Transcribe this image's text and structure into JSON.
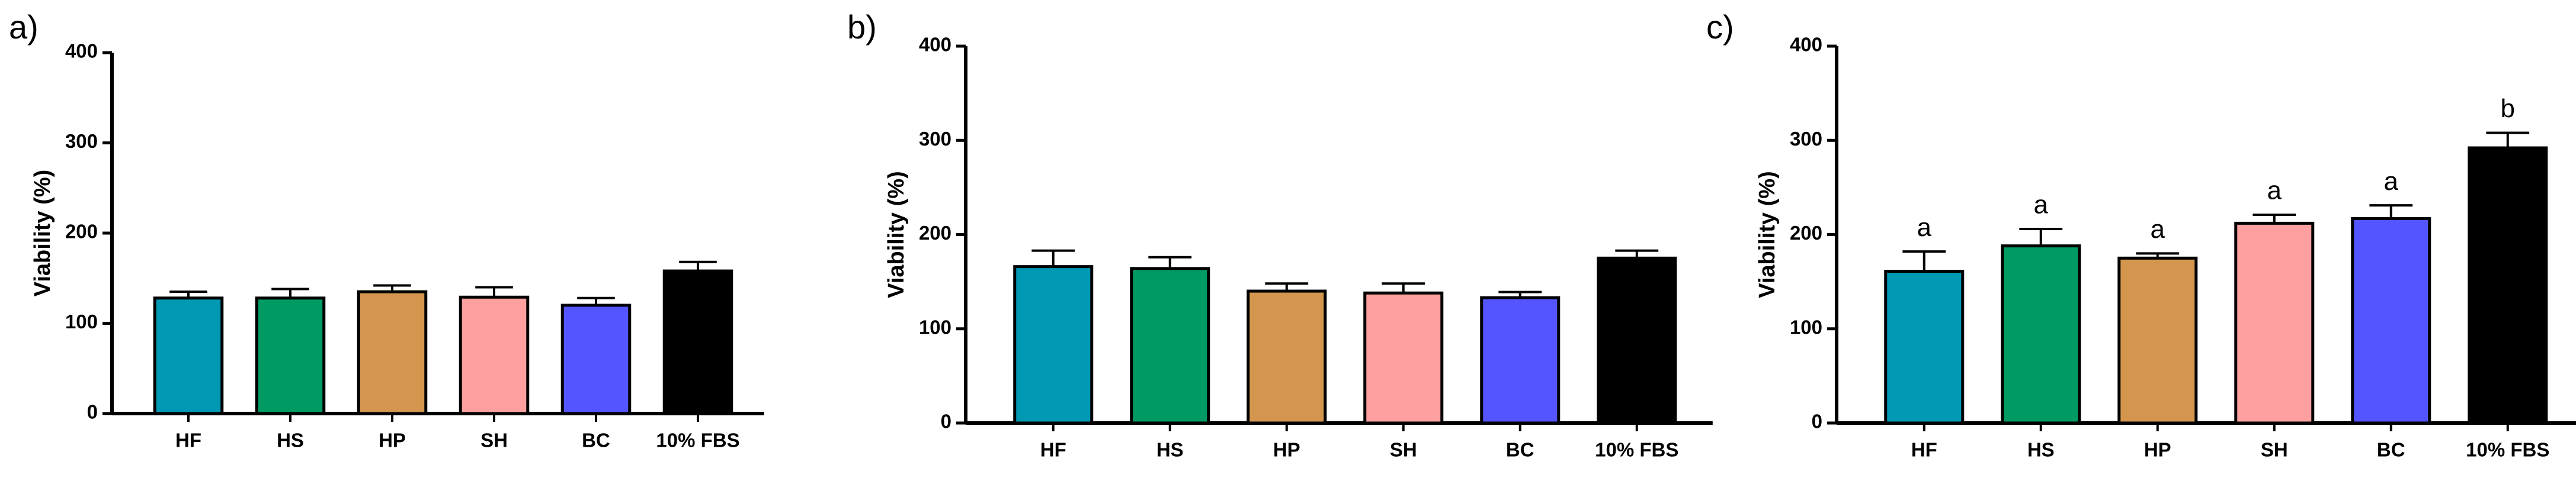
{
  "chart_data": [
    {
      "type": "bar",
      "panel": "a)",
      "ylabel": "Viability (%)",
      "categories": [
        "HF",
        "HS",
        "HP",
        "SH",
        "BC",
        "10% FBS"
      ],
      "values": [
        128,
        128,
        135,
        129,
        120,
        158
      ],
      "errors": [
        7,
        10,
        7,
        11,
        8,
        10
      ],
      "colors": [
        "#0099b4",
        "#009a63",
        "#d4964f",
        "#ffa0a0",
        "#5555ff",
        "#000000"
      ],
      "ylim": [
        0,
        400
      ],
      "yticks": [
        0,
        100,
        200,
        300,
        400
      ]
    },
    {
      "type": "bar",
      "panel": "b)",
      "ylabel": "Viability (%)",
      "categories": [
        "HF",
        "HS",
        "HP",
        "SH",
        "BC",
        "10% FBS"
      ],
      "values": [
        166,
        164,
        140,
        138,
        133,
        175
      ],
      "errors": [
        17,
        12,
        8,
        10,
        6,
        8
      ],
      "colors": [
        "#0099b4",
        "#009a63",
        "#d4964f",
        "#ffa0a0",
        "#5555ff",
        "#000000"
      ],
      "ylim": [
        0,
        400
      ],
      "yticks": [
        0,
        100,
        200,
        300,
        400
      ]
    },
    {
      "type": "bar",
      "panel": "c)",
      "ylabel": "Viability (%)",
      "categories": [
        "HF",
        "HS",
        "HP",
        "SH",
        "BC",
        "10% FBS"
      ],
      "values": [
        161,
        188,
        175,
        212,
        217,
        292
      ],
      "errors": [
        21,
        18,
        5,
        9,
        14,
        16
      ],
      "annotations": [
        "a",
        "a",
        "a",
        "a",
        "a",
        "b"
      ],
      "colors": [
        "#0099b4",
        "#009a63",
        "#d4964f",
        "#ffa0a0",
        "#5555ff",
        "#000000"
      ],
      "ylim": [
        0,
        400
      ],
      "yticks": [
        0,
        100,
        200,
        300,
        400
      ]
    }
  ]
}
